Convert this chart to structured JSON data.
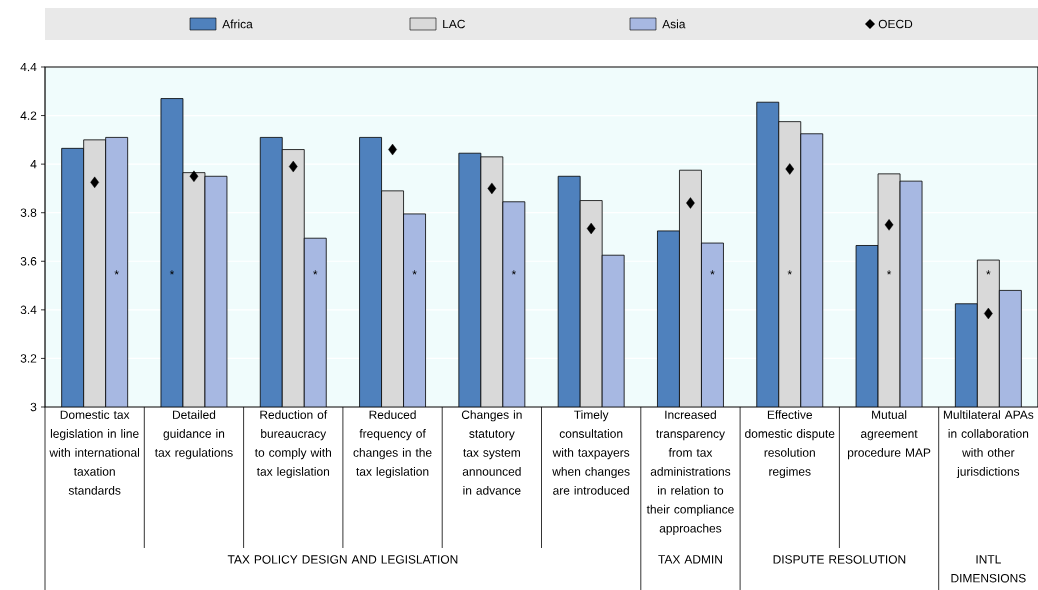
{
  "chart_data": {
    "type": "bar",
    "categories": [
      "Domestic tax legislation in line with international taxation standards",
      "Detailed guidance in tax regulations",
      "Reduction of bureaucracy to comply with tax legislation",
      "Reduced frequency of changes in the tax legislation",
      "Changes in statutory tax system announced in advance",
      "Timely consultation with taxpayers when changes are introduced",
      "Increased transparency from tax administrations in relation to their compliance approaches",
      "Effective domestic dispute resolution regimes",
      "Mutual agreement procedure MAP",
      "Multilateral APAs in collaboration with other jurisdictions"
    ],
    "series": [
      {
        "name": "Africa",
        "color": "#4f81bd",
        "values": [
          4.065,
          4.27,
          4.11,
          4.11,
          4.045,
          3.95,
          3.725,
          4.255,
          3.665,
          3.425
        ],
        "value_labels": [
          null,
          "*",
          null,
          null,
          null,
          null,
          null,
          null,
          null,
          null
        ]
      },
      {
        "name": "LAC",
        "color": "#d9d9d9",
        "values": [
          4.1,
          3.965,
          4.06,
          3.89,
          4.03,
          3.85,
          3.975,
          4.175,
          3.96,
          3.605
        ],
        "value_labels": [
          null,
          null,
          null,
          null,
          null,
          null,
          null,
          "*",
          "*",
          "*"
        ]
      },
      {
        "name": "Asia",
        "color": "#a7b8e2",
        "values": [
          4.11,
          3.95,
          3.695,
          3.795,
          3.845,
          3.625,
          3.675,
          4.125,
          3.93,
          3.48
        ],
        "value_labels": [
          "*",
          null,
          "*",
          "*",
          "*",
          null,
          "*",
          null,
          null,
          null
        ]
      },
      {
        "name": "OECD",
        "type": "scatter",
        "marker": "diamond",
        "color": "#000000",
        "x": [
          "Domestic tax legislation in line with international taxation standards",
          "Detailed guidance in tax regulations",
          "Reduction of bureaucracy to comply with tax legislation",
          "Reduced frequency of changes in the tax legislation",
          "Changes in statutory tax system announced in advance",
          "Timely consultation with taxpayers when changes are introduced",
          "Increased transparency from tax administrations in relation to their compliance approaches",
          "Effective domestic dispute resolution regimes",
          "Mutual agreement procedure MAP",
          "Multilateral APAs in collaboration with other jurisdictions"
        ],
        "values": [
          3.925,
          3.95,
          3.99,
          4.06,
          3.9,
          3.735,
          3.84,
          3.98,
          3.75,
          3.385
        ]
      }
    ],
    "ylim": [
      3,
      4.4
    ],
    "yticks": [
      3,
      3.2,
      3.4,
      3.6,
      3.8,
      4,
      4.2,
      4.4
    ],
    "grid": "y",
    "legend": "top",
    "annotations": [
      "TAX POLICY DESIGN AND LEGISLATION",
      "TAX ADMIN",
      "DISPUTE RESOLUTION",
      "INTL DIMENSIONS"
    ]
  }
}
